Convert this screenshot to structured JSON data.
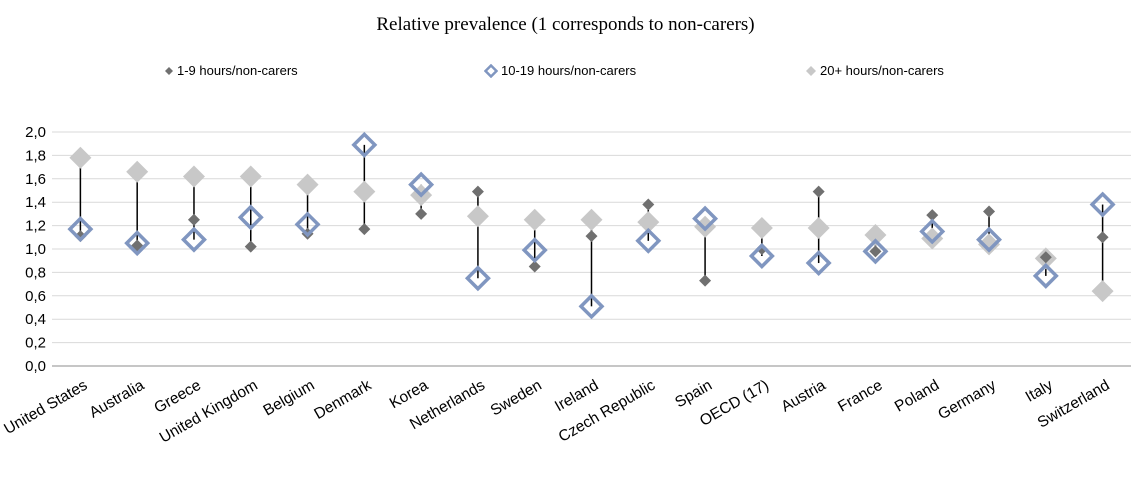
{
  "chart_data": {
    "type": "scatter",
    "title": "Relative prevalence (1 corresponds to non-carers)",
    "categories": [
      "United States",
      "Australia",
      "Greece",
      "United Kingdom",
      "Belgium",
      "Denmark",
      "Korea",
      "Netherlands",
      "Sweden",
      "Ireland",
      "Czech Republic",
      "Spain",
      "OECD (17)",
      "Austria",
      "France",
      "Poland",
      "Germany",
      "Italy",
      "Switzerland"
    ],
    "series": [
      {
        "name": "1-9 hours/non-carers",
        "color": "#707070",
        "marker": "diamond-small",
        "values": [
          1.11,
          1.03,
          1.25,
          1.02,
          1.13,
          1.17,
          1.3,
          1.49,
          0.85,
          1.11,
          1.38,
          0.73,
          1.0,
          1.49,
          0.98,
          1.29,
          1.32,
          0.93,
          1.1
        ]
      },
      {
        "name": "10-19 hours/non-carers",
        "color": "#8096c0",
        "marker": "diamond-hollow",
        "values": [
          1.17,
          1.05,
          1.08,
          1.27,
          1.21,
          1.89,
          1.55,
          0.75,
          0.99,
          0.51,
          1.07,
          1.26,
          0.94,
          0.88,
          0.98,
          1.15,
          1.08,
          0.77,
          1.38
        ]
      },
      {
        "name": "20+ hours/non-carers",
        "color": "#c8c8c8",
        "marker": "diamond-filled",
        "values": [
          1.78,
          1.66,
          1.62,
          1.62,
          1.55,
          1.49,
          1.46,
          1.28,
          1.25,
          1.25,
          1.23,
          1.19,
          1.18,
          1.18,
          1.12,
          1.09,
          1.04,
          0.92,
          0.64
        ]
      }
    ],
    "ylim": [
      0,
      2.0
    ],
    "yticks": [
      "0,0",
      "0,2",
      "0,4",
      "0,6",
      "0,8",
      "1,0",
      "1,2",
      "1,4",
      "1,6",
      "1,8",
      "2,0"
    ],
    "grid": true,
    "legend_position": "top"
  }
}
